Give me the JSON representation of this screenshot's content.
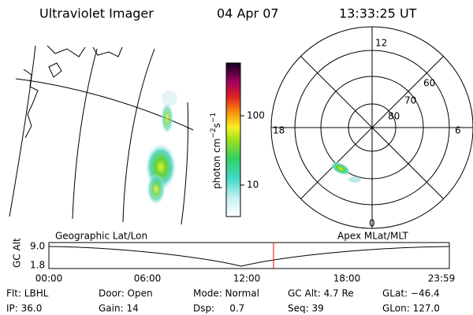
{
  "header": {
    "title": "Ultraviolet Imager",
    "date": "04 Apr 07",
    "time": "13:33:25 UT"
  },
  "colorbar": {
    "label": "photon cm",
    "exp1": "−2",
    "unit2": "s",
    "exp2": "−1",
    "ticks": [
      "100",
      "10"
    ]
  },
  "polar": {
    "labels": [
      "12",
      "18",
      "6",
      "0",
      "60",
      "70",
      "80"
    ]
  },
  "orbit": {
    "left_label": "Geographic Lat/Lon",
    "right_label": "Apex MLat/MLT",
    "y_label": "GC Alt",
    "yticks": [
      "9.0",
      "1.8"
    ],
    "xticks": [
      "00:00",
      "06:00",
      "12:00",
      "18:00",
      "23:59"
    ]
  },
  "info": {
    "rows": [
      [
        "Flt: LBHL",
        "Door: Open",
        "Mode: Normal",
        "GC Alt: 4.7 Re",
        "GLat: −46.4"
      ],
      [
        "IP: 36.0",
        "Gain: 14",
        "Dsp:     0.7",
        "Seq: 39",
        "GLon: 127.0"
      ]
    ]
  }
}
